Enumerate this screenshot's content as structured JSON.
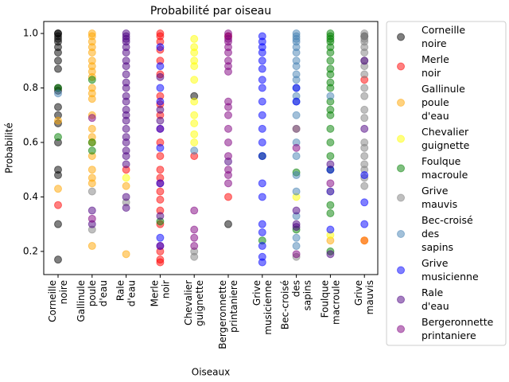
{
  "chart_data": {
    "type": "scatter",
    "title": "Probabilité par oiseau",
    "x_label": "Oiseaux",
    "y_label": "Probabilité",
    "categories": [
      "Corneille noire",
      "Gallinule poule d'eau",
      "Rale d'eau",
      "Merle noir",
      "Chevalier guignette",
      "Bergeronnette printaniere",
      "Grive musicienne",
      "Bec-croisé des sapins",
      "Foulque macroule",
      "Grive mauvis"
    ],
    "ylim": [
      0.115,
      1.044
    ],
    "yticks": [
      0.2,
      0.4,
      0.6,
      0.8,
      {
        "value": 1,
        "label": "1.0"
      }
    ],
    "series": [
      {
        "name": "Corneille noire",
        "color": "black",
        "x": [
          "Corneille noire",
          "Corneille noire",
          "Corneille noire",
          "Corneille noire",
          "Corneille noire",
          "Corneille noire",
          "Corneille noire",
          "Corneille noire",
          "Corneille noire",
          "Corneille noire",
          "Corneille noire",
          "Corneille noire",
          "Corneille noire",
          "Corneille noire",
          "Corneille noire",
          "Corneille noire",
          "Corneille noire",
          "Corneille noire",
          "Corneille noire",
          "Chevalier guignette",
          "Bergeronnette printaniere",
          "Grive mauvis"
        ],
        "values": [
          1.0,
          1.0,
          0.99,
          0.98,
          0.97,
          0.95,
          0.93,
          0.9,
          0.87,
          0.8,
          0.79,
          0.73,
          0.7,
          0.67,
          0.6,
          0.5,
          0.48,
          0.3,
          0.17,
          0.77,
          0.3,
          0.99
        ]
      },
      {
        "name": "Merle noir",
        "color": "red",
        "x": [
          "Merle noir",
          "Merle noir",
          "Merle noir",
          "Merle noir",
          "Merle noir",
          "Merle noir",
          "Merle noir",
          "Merle noir",
          "Merle noir",
          "Merle noir",
          "Merle noir",
          "Merle noir",
          "Merle noir",
          "Merle noir",
          "Merle noir",
          "Merle noir",
          "Merle noir",
          "Merle noir",
          "Merle noir",
          "Merle noir",
          "Merle noir",
          "Merle noir",
          "Corneille noire",
          "Chevalier guignette",
          "Bergeronnette printaniere",
          "Bergeronnette printaniere",
          "Bec-croisé des sapins",
          "Grive mauvis",
          "Grive mauvis",
          "Rale d'eau"
        ],
        "values": [
          1.0,
          0.99,
          0.97,
          0.94,
          0.9,
          0.85,
          0.77,
          0.74,
          0.7,
          0.65,
          0.6,
          0.55,
          0.5,
          0.47,
          0.45,
          0.42,
          0.39,
          0.35,
          0.3,
          0.2,
          0.17,
          0.16,
          0.37,
          0.55,
          0.4,
          0.99,
          0.65,
          0.83,
          0.24,
          0.5
        ]
      },
      {
        "name": "Gallinule poule d'eau",
        "color": "orange",
        "x": [
          "Gallinule poule d'eau",
          "Gallinule poule d'eau",
          "Gallinule poule d'eau",
          "Gallinule poule d'eau",
          "Gallinule poule d'eau",
          "Gallinule poule d'eau",
          "Gallinule poule d'eau",
          "Gallinule poule d'eau",
          "Gallinule poule d'eau",
          "Gallinule poule d'eau",
          "Gallinule poule d'eau",
          "Gallinule poule d'eau",
          "Gallinule poule d'eau",
          "Gallinule poule d'eau",
          "Gallinule poule d'eau",
          "Gallinule poule d'eau",
          "Gallinule poule d'eau",
          "Gallinule poule d'eau",
          "Gallinule poule d'eau",
          "Gallinule poule d'eau",
          "Gallinule poule d'eau",
          "Corneille noire",
          "Corneille noire",
          "Rale d'eau",
          "Rale d'eau",
          "Foulque macroule",
          "Foulque macroule",
          "Grive mauvis"
        ],
        "values": [
          1.0,
          0.99,
          0.97,
          0.95,
          0.93,
          0.9,
          0.88,
          0.86,
          0.84,
          0.8,
          0.78,
          0.76,
          0.7,
          0.65,
          0.62,
          0.6,
          0.55,
          0.5,
          0.47,
          0.45,
          0.22,
          0.43,
          0.68,
          0.19,
          0.44,
          0.24,
          0.42,
          0.24
        ]
      },
      {
        "name": "Chevalier guignette",
        "color": "yellow",
        "x": [
          "Chevalier guignette",
          "Chevalier guignette",
          "Chevalier guignette",
          "Chevalier guignette",
          "Chevalier guignette",
          "Chevalier guignette",
          "Chevalier guignette",
          "Chevalier guignette",
          "Chevalier guignette",
          "Chevalier guignette",
          "Chevalier guignette",
          "Rale d'eau",
          "Bec-croisé des sapins",
          "Foulque macroule"
        ],
        "values": [
          0.98,
          0.95,
          0.93,
          0.9,
          0.88,
          0.83,
          0.75,
          0.7,
          0.67,
          0.63,
          0.6,
          0.47,
          0.4,
          0.26
        ]
      },
      {
        "name": "Foulque macroule",
        "color": "green",
        "x": [
          "Foulque macroule",
          "Foulque macroule",
          "Foulque macroule",
          "Foulque macroule",
          "Foulque macroule",
          "Foulque macroule",
          "Foulque macroule",
          "Foulque macroule",
          "Foulque macroule",
          "Foulque macroule",
          "Foulque macroule",
          "Foulque macroule",
          "Foulque macroule",
          "Foulque macroule",
          "Foulque macroule",
          "Foulque macroule",
          "Foulque macroule",
          "Foulque macroule",
          "Foulque macroule",
          "Foulque macroule",
          "Foulque macroule",
          "Corneille noire",
          "Corneille noire",
          "Gallinule poule d'eau",
          "Gallinule poule d'eau",
          "Gallinule poule d'eau",
          "Merle noir",
          "Bec-croisé des sapins",
          "Bec-croisé des sapins",
          "Grive musicienne",
          "Grive musicienne"
        ],
        "values": [
          1.0,
          0.99,
          0.98,
          0.97,
          0.95,
          0.93,
          0.9,
          0.87,
          0.85,
          0.82,
          0.8,
          0.75,
          0.72,
          0.7,
          0.65,
          0.6,
          0.55,
          0.5,
          0.37,
          0.34,
          0.2,
          0.62,
          0.8,
          0.83,
          0.6,
          0.57,
          0.31,
          0.49,
          0.28,
          0.55,
          0.24
        ]
      },
      {
        "name": "Grive mauvis",
        "color": "gray",
        "x": [
          "Grive mauvis",
          "Grive mauvis",
          "Grive mauvis",
          "Grive mauvis",
          "Grive mauvis",
          "Grive mauvis",
          "Grive mauvis",
          "Grive mauvis",
          "Grive mauvis",
          "Grive mauvis",
          "Grive mauvis",
          "Grive mauvis",
          "Grive mauvis",
          "Grive mauvis",
          "Grive mauvis",
          "Grive mauvis",
          "Grive mauvis",
          "Grive mauvis",
          "Grive mauvis",
          "Grive mauvis",
          "Gallinule poule d'eau",
          "Gallinule poule d'eau",
          "Chevalier guignette",
          "Chevalier guignette",
          "Rale d'eau",
          "Bec-croisé des sapins"
        ],
        "values": [
          1.0,
          0.99,
          0.98,
          0.97,
          0.95,
          0.93,
          0.9,
          0.88,
          0.85,
          0.8,
          0.77,
          0.72,
          0.69,
          0.6,
          0.58,
          0.55,
          0.52,
          0.5,
          0.47,
          0.44,
          0.42,
          0.28,
          0.2,
          0.18,
          0.38,
          0.18
        ]
      },
      {
        "name": "Bec-croisé des sapins",
        "color": "steelblue",
        "x": [
          "Bec-croisé des sapins",
          "Bec-croisé des sapins",
          "Bec-croisé des sapins",
          "Bec-croisé des sapins",
          "Bec-croisé des sapins",
          "Bec-croisé des sapins",
          "Bec-croisé des sapins",
          "Bec-croisé des sapins",
          "Bec-croisé des sapins",
          "Bec-croisé des sapins",
          "Bec-croisé des sapins",
          "Bec-croisé des sapins",
          "Bec-croisé des sapins",
          "Bec-croisé des sapins",
          "Bec-croisé des sapins",
          "Bec-croisé des sapins",
          "Bec-croisé des sapins",
          "Bec-croisé des sapins",
          "Bec-croisé des sapins",
          "Bec-croisé des sapins",
          "Bec-croisé des sapins",
          "Bec-croisé des sapins",
          "Corneille noire",
          "Chevalier guignette",
          "Foulque macroule"
        ],
        "values": [
          1.0,
          0.99,
          0.98,
          0.97,
          0.95,
          0.93,
          0.9,
          0.88,
          0.85,
          0.83,
          0.8,
          0.77,
          0.75,
          0.7,
          0.65,
          0.6,
          0.55,
          0.48,
          0.42,
          0.33,
          0.25,
          0.22,
          0.78,
          0.57,
          0.77
        ]
      },
      {
        "name": "Grive musicienne",
        "color": "blue",
        "x": [
          "Grive musicienne",
          "Grive musicienne",
          "Grive musicienne",
          "Grive musicienne",
          "Grive musicienne",
          "Grive musicienne",
          "Grive musicienne",
          "Grive musicienne",
          "Grive musicienne",
          "Grive musicienne",
          "Grive musicienne",
          "Grive musicienne",
          "Grive musicienne",
          "Grive musicienne",
          "Grive musicienne",
          "Grive musicienne",
          "Grive musicienne",
          "Grive musicienne",
          "Grive musicienne",
          "Grive musicienne",
          "Merle noir",
          "Merle noir",
          "Merle noir",
          "Merle noir",
          "Merle noir",
          "Merle noir",
          "Merle noir",
          "Merle noir",
          "Merle noir",
          "Bec-croisé des sapins",
          "Bec-croisé des sapins",
          "Foulque macroule",
          "Foulque macroule",
          "Foulque macroule",
          "Grive mauvis",
          "Grive mauvis",
          "Grive mauvis"
        ],
        "values": [
          0.99,
          0.97,
          0.95,
          0.93,
          0.9,
          0.87,
          0.83,
          0.8,
          0.75,
          0.7,
          0.65,
          0.6,
          0.55,
          0.45,
          0.4,
          0.3,
          0.27,
          0.22,
          0.18,
          0.16,
          0.95,
          0.88,
          0.8,
          0.75,
          0.65,
          0.58,
          0.45,
          0.25,
          0.22,
          0.8,
          0.75,
          0.5,
          0.42,
          0.28,
          0.48,
          0.38,
          0.3
        ]
      },
      {
        "name": "Rale d'eau",
        "color": "indigo",
        "x": [
          "Rale d'eau",
          "Rale d'eau",
          "Rale d'eau",
          "Rale d'eau",
          "Rale d'eau",
          "Rale d'eau",
          "Rale d'eau",
          "Rale d'eau",
          "Rale d'eau",
          "Rale d'eau",
          "Rale d'eau",
          "Rale d'eau",
          "Rale d'eau",
          "Rale d'eau",
          "Rale d'eau",
          "Rale d'eau",
          "Rale d'eau",
          "Rale d'eau",
          "Rale d'eau",
          "Rale d'eau",
          "Rale d'eau",
          "Rale d'eau",
          "Rale d'eau",
          "Rale d'eau",
          "Gallinule poule d'eau",
          "Gallinule poule d'eau",
          "Merle noir",
          "Merle noir",
          "Merle noir",
          "Merle noir",
          "Bergeronnette printaniere",
          "Bec-croisé des sapins",
          "Bec-croisé des sapins",
          "Bec-croisé des sapins",
          "Foulque macroule",
          "Foulque macroule",
          "Grive mauvis",
          "Grive mauvis"
        ],
        "values": [
          1.0,
          0.99,
          0.98,
          0.97,
          0.95,
          0.93,
          0.9,
          0.88,
          0.85,
          0.82,
          0.8,
          0.77,
          0.75,
          0.72,
          0.7,
          0.68,
          0.65,
          0.62,
          0.6,
          0.57,
          0.55,
          0.52,
          0.4,
          0.36,
          0.35,
          0.3,
          0.84,
          0.72,
          0.68,
          0.33,
          0.53,
          0.35,
          0.3,
          0.29,
          0.52,
          0.19,
          0.65,
          0.9
        ]
      },
      {
        "name": "Bergeronnette printaniere",
        "color": "purple",
        "x": [
          "Bergeronnette printaniere",
          "Bergeronnette printaniere",
          "Bergeronnette printaniere",
          "Bergeronnette printaniere",
          "Bergeronnette printaniere",
          "Bergeronnette printaniere",
          "Bergeronnette printaniere",
          "Bergeronnette printaniere",
          "Bergeronnette printaniere",
          "Bergeronnette printaniere",
          "Bergeronnette printaniere",
          "Bergeronnette printaniere",
          "Bergeronnette printaniere",
          "Bergeronnette printaniere",
          "Bergeronnette printaniere",
          "Bergeronnette printaniere",
          "Bergeronnette printaniere",
          "Bergeronnette printaniere",
          "Gallinule poule d'eau",
          "Gallinule poule d'eau",
          "Chevalier guignette",
          "Chevalier guignette",
          "Chevalier guignette",
          "Chevalier guignette",
          "Bec-croisé des sapins",
          "Bec-croisé des sapins",
          "Foulque macroule",
          "Merle noir"
        ],
        "values": [
          1.0,
          0.99,
          0.98,
          0.97,
          0.95,
          0.93,
          0.9,
          0.88,
          0.86,
          0.75,
          0.73,
          0.7,
          0.65,
          0.6,
          0.55,
          0.5,
          0.48,
          0.45,
          0.69,
          0.32,
          0.35,
          0.28,
          0.25,
          0.22,
          0.58,
          0.19,
          0.45,
          0.22
        ]
      }
    ]
  }
}
